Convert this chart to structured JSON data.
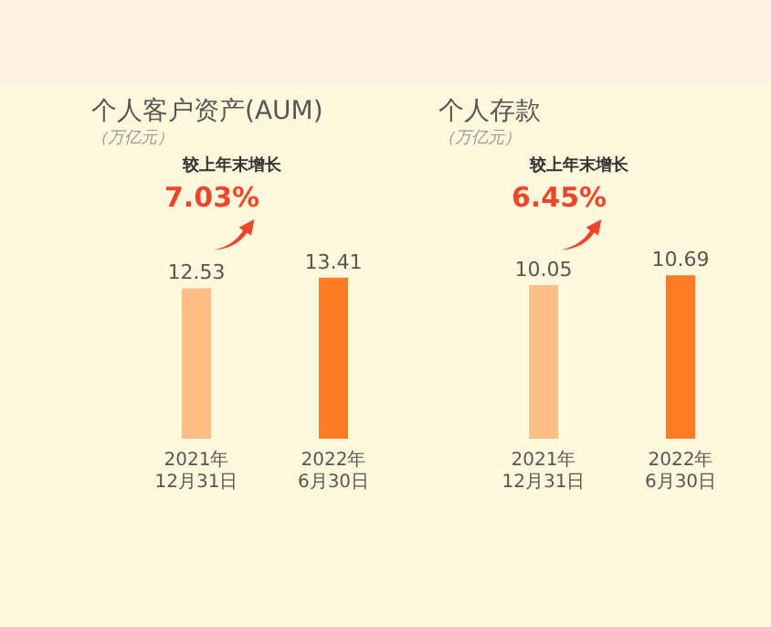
{
  "chart_data": [
    {
      "type": "bar",
      "title": "个人客户资产(AUM)",
      "subtitle": "（万亿元）",
      "categories": [
        "2021年\n12月31日",
        "2022年\n6月30日"
      ],
      "values": [
        12.53,
        13.41
      ],
      "colors": [
        "#ffbf87",
        "#ff7a22"
      ],
      "data_labels": true,
      "annotations": [
        "较上年末增长",
        "7.03%"
      ]
    },
    {
      "type": "bar",
      "title": "个人存款",
      "subtitle": "（万亿元）",
      "categories": [
        "2021年\n12月31日",
        "2022年\n6月30日"
      ],
      "values": [
        10.05,
        10.69
      ],
      "colors": [
        "#ffbf87",
        "#ff7a22"
      ],
      "data_labels": true,
      "annotations": [
        "较上年末增长",
        "6.45%"
      ]
    }
  ]
}
